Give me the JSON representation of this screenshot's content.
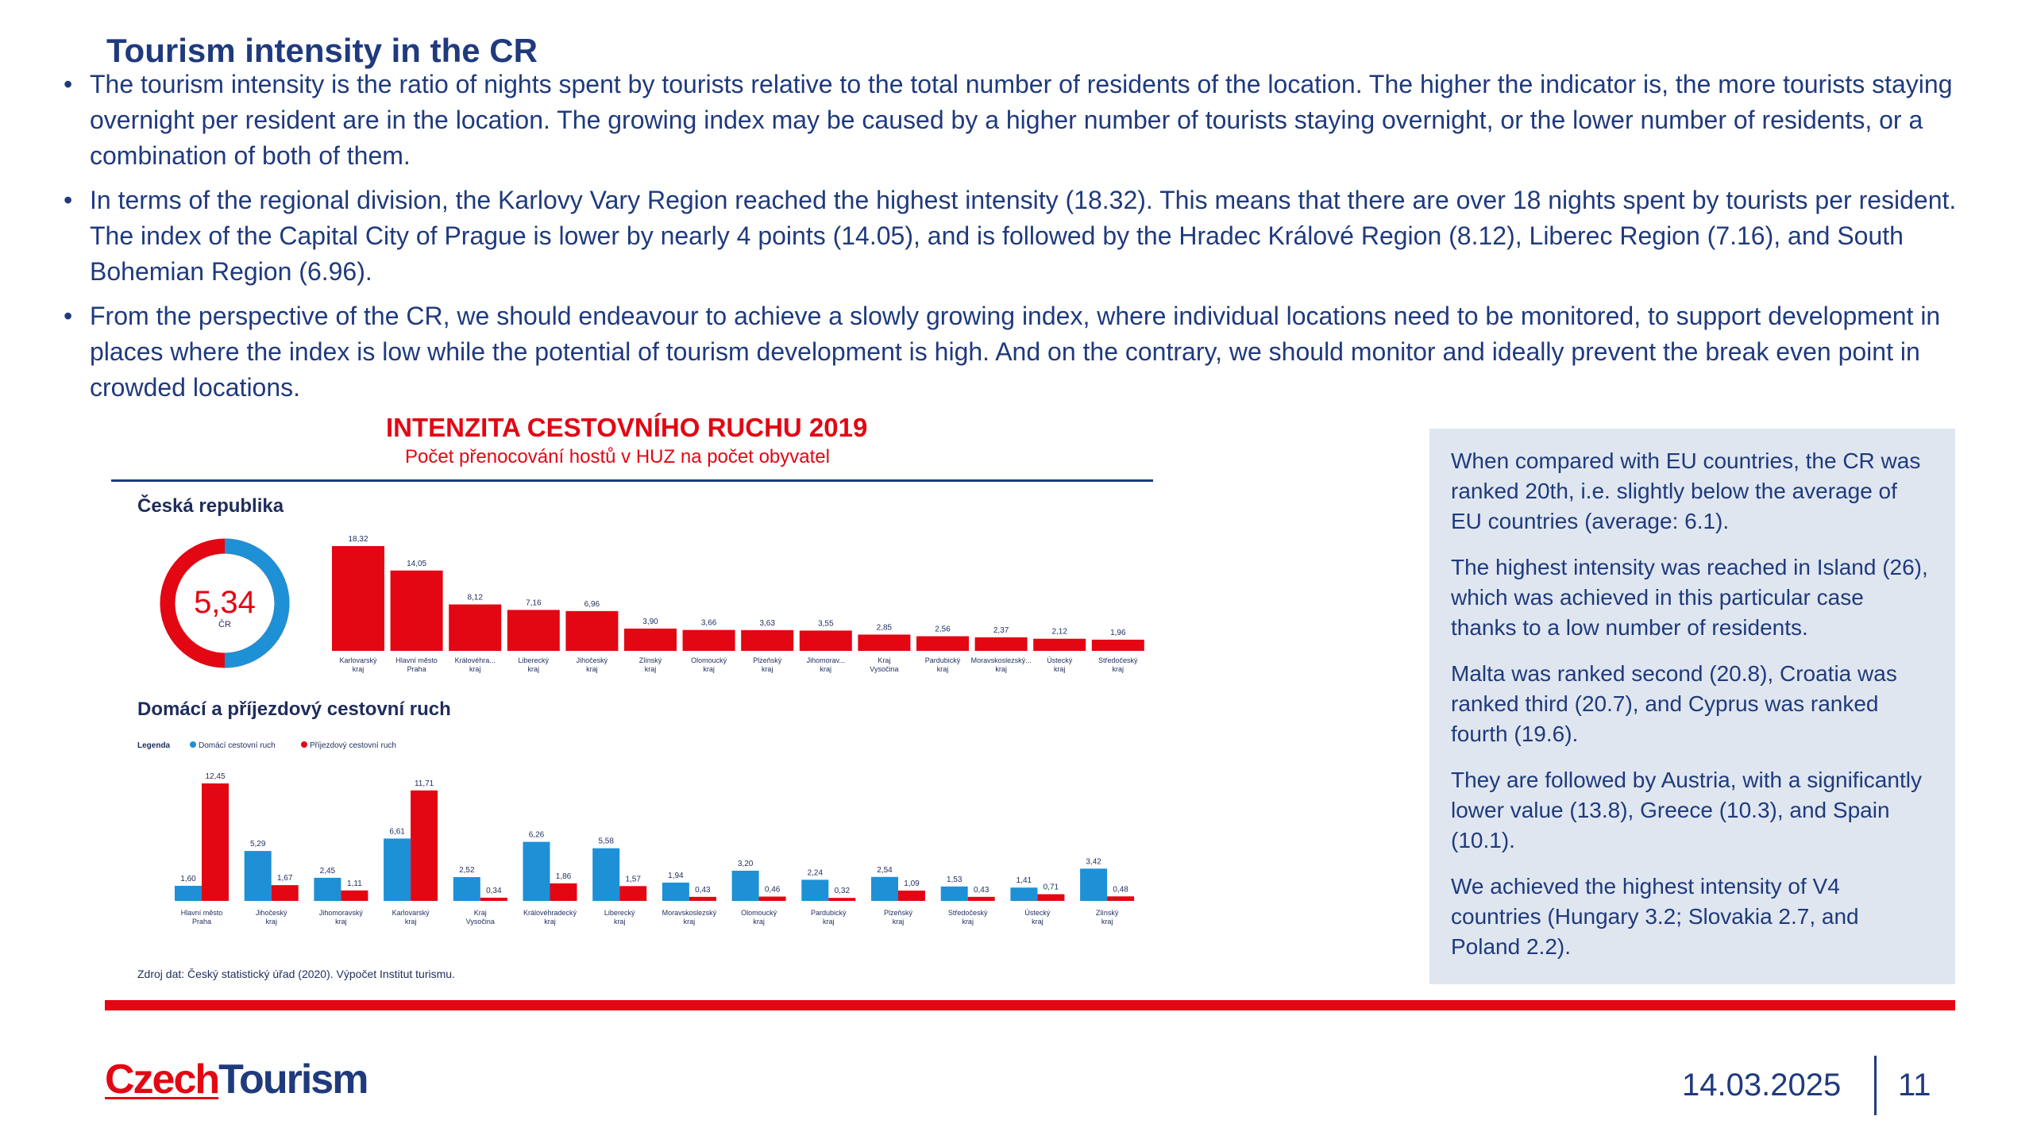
{
  "slide": {
    "title": "Tourism intensity in the CR",
    "bullets": [
      "The tourism intensity is the ratio of nights spent by tourists relative to the total number of residents of the location. The higher the indicator is, the more tourists staying overnight per resident are in the location. The growing index may be caused by a higher number of tourists staying overnight, or the lower number of residents, or a combination of both of them.",
      "In terms of the regional division, the Karlovy Vary Region reached the highest intensity (18.32). This means that there are over 18 nights spent by tourists per resident. The index of the Capital City of Prague is lower by nearly 4 points (14.05), and is followed by the Hradec Králové Region (8.12), Liberec Region (7.16), and South Bohemian Region (6.96).",
      "From the perspective of the CR, we should endeavour to achieve a slowly growing index, where individual locations need to be monitored, to support development in places where the index is low while the potential of tourism development is high. And on the contrary, we should monitor and ideally prevent the break even point in crowded locations."
    ]
  },
  "chart_header": {
    "title": "INTENZITA CESTOVNÍHO RUCHU 2019",
    "subtitle": "Počet přenocování hostů v HUZ na počet obyvatel",
    "section1": "Česká republika",
    "section2": "Domácí a příjezdový cestovní ruch",
    "source": "Zdroj dat: Český statistický úřad (2020). Výpočet Institut turismu."
  },
  "chart_data": [
    {
      "type": "donut",
      "value_label": "5,34",
      "center_label": "ČR",
      "value": 5.34,
      "colors": [
        "#e30613",
        "#1e90d6"
      ]
    },
    {
      "type": "bar",
      "title": "Česká republika",
      "categories": [
        "Karlovarský kraj",
        "Hlavní město Praha",
        "Královéhra... kraj",
        "Liberecký kraj",
        "Jihočeský kraj",
        "Zlínský kraj",
        "Olomoucký kraj",
        "Plzeňský kraj",
        "Jihomorav... kraj",
        "Kraj Vysočina",
        "Pardubický kraj",
        "Moravskoslezský... kraj",
        "Ústecký kraj",
        "Středočeský kraj"
      ],
      "values": [
        18.32,
        14.05,
        8.12,
        7.16,
        6.96,
        3.9,
        3.66,
        3.63,
        3.55,
        2.85,
        2.56,
        2.37,
        2.12,
        1.96
      ],
      "labels": [
        "18,32",
        "14,05",
        "8,12",
        "7,16",
        "6,96",
        "3,90",
        "3,66",
        "3,63",
        "3,55",
        "2,85",
        "2,56",
        "2,37",
        "2,12",
        "1,96"
      ],
      "color": "#e30613",
      "ylim": [
        0,
        18.32
      ]
    },
    {
      "type": "bar",
      "title": "Domácí a příjezdový cestovní ruch",
      "legend_title": "Legenda",
      "categories": [
        "Hlavní město Praha",
        "Jihočeský kraj",
        "Jihomoravský kraj",
        "Karlovarský kraj",
        "Kraj Vysočina",
        "Královéhradecký kraj",
        "Liberecký kraj",
        "Moravskoslezský kraj",
        "Olomoucký kraj",
        "Pardubický kraj",
        "Plzeňský kraj",
        "Středočeský kraj",
        "Ústecký kraj",
        "Zlínský kraj"
      ],
      "series": [
        {
          "name": "Domácí cestovní ruch",
          "color": "#1e90d6",
          "values": [
            1.6,
            5.29,
            2.45,
            6.61,
            2.52,
            6.26,
            5.58,
            1.94,
            3.2,
            2.24,
            2.54,
            1.53,
            1.41,
            3.42
          ],
          "labels": [
            "1,60",
            "5,29",
            "2,45",
            "6,61",
            "2,52",
            "6,26",
            "5,58",
            "1,94",
            "3,20",
            "2,24",
            "2,54",
            "1,53",
            "1,41",
            "3,42"
          ]
        },
        {
          "name": "Příjezdový cestovní ruch",
          "color": "#e30613",
          "values": [
            12.45,
            1.67,
            1.11,
            11.71,
            0.34,
            1.86,
            1.57,
            0.43,
            0.46,
            0.32,
            1.09,
            0.43,
            0.71,
            0.48
          ],
          "labels": [
            "12,45",
            "1,67",
            "1,11",
            "11,71",
            "0,34",
            "1,86",
            "1,57",
            "0,43",
            "0,46",
            "0,32",
            "1,09",
            "0,43",
            "0,71",
            "0,48"
          ]
        }
      ],
      "ylim": [
        0,
        12.45
      ]
    }
  ],
  "sidebox": {
    "paragraphs": [
      "When compared with EU countries, the CR was ranked 20th, i.e. slightly below the average of EU countries (average: 6.1).",
      "The highest intensity was reached in Island (26), which was achieved in this particular case thanks to a low number of residents.",
      "Malta was ranked second (20.8), Croatia was ranked third (20.7), and Cyprus was ranked fourth (19.6).",
      "They are followed by Austria, with a significantly lower value (13.8), Greece (10.3), and Spain (10.1).",
      "We achieved the highest intensity of V4 countries (Hungary 3.2; Slovakia 2.7, and Poland 2.2)."
    ]
  },
  "footer": {
    "logo_part1": "Czech",
    "logo_part2": "Tourism",
    "date": "14.03.2025",
    "page": "11"
  },
  "colors": {
    "brand_red": "#e30613",
    "brand_blue": "#1f3a7d",
    "bar_blue": "#1e90d6",
    "sidebox_bg": "#dfe6ef"
  }
}
